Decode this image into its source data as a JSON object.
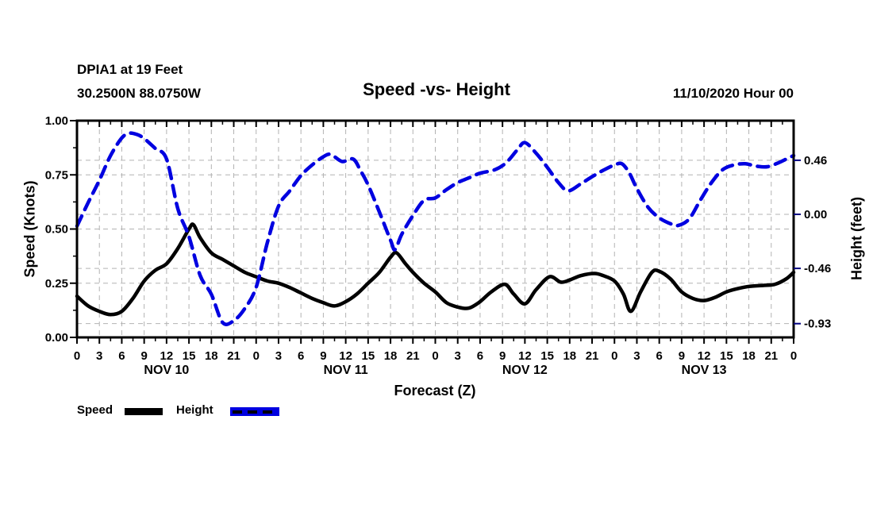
{
  "header": {
    "station_line1": "DPIA1 at 19 Feet",
    "station_line2": "30.2500N 88.0750W",
    "title": "Speed -vs- Height",
    "run_info": "11/10/2020 Hour 00"
  },
  "colors": {
    "speed_line": "#000000",
    "height_line": "#0000e0",
    "grid": "#b3b3b3",
    "right_axis_tick": "#000080",
    "frame": "#000000",
    "background": "#ffffff"
  },
  "legend": [
    {
      "label": "Speed",
      "swatch": "solid-black-line"
    },
    {
      "label": "Height",
      "swatch": "blue-dashed-line"
    }
  ],
  "chart_data": {
    "type": "line",
    "title": "Speed -vs- Height",
    "xlabel": "Forecast (Z)",
    "ylabel_left": "Speed (Knots)",
    "ylabel_right": "Height (feet)",
    "grid": true,
    "x_range_hours": [
      0,
      96
    ],
    "x_major_tick_step_hours": 3,
    "x_minor_tick_step_hours": 1.5,
    "hour_label_cycle": [
      "0",
      "3",
      "6",
      "9",
      "12",
      "15",
      "18",
      "21"
    ],
    "end_hour_label": "0",
    "day_labels": [
      "NOV 10",
      "NOV 11",
      "NOV 12",
      "NOV 13"
    ],
    "left_axis": {
      "range": [
        0.0,
        1.0
      ],
      "tick_values": [
        0.0,
        0.25,
        0.5,
        0.75,
        1.0
      ],
      "tick_labels": [
        "0.00",
        "0.25",
        "0.50",
        "0.75",
        "1.00"
      ],
      "minor_tick_step": 0.125
    },
    "right_axis": {
      "range": [
        -1.047,
        0.797
      ],
      "tick_values": [
        0.46,
        0.0,
        -0.46,
        -0.93
      ],
      "tick_labels": [
        "0.46",
        "0.00",
        "-0.46",
        "-0.93"
      ]
    },
    "series": [
      {
        "name": "Speed",
        "axis": "left",
        "style": "solid",
        "color": "#000000",
        "points": [
          [
            0,
            0.19
          ],
          [
            1.5,
            0.145
          ],
          [
            3,
            0.12
          ],
          [
            4.5,
            0.105
          ],
          [
            6,
            0.12
          ],
          [
            7.5,
            0.18
          ],
          [
            9,
            0.26
          ],
          [
            10.5,
            0.31
          ],
          [
            12,
            0.34
          ],
          [
            13.5,
            0.41
          ],
          [
            15,
            0.5
          ],
          [
            15.6,
            0.52
          ],
          [
            16.5,
            0.46
          ],
          [
            18,
            0.39
          ],
          [
            19.5,
            0.36
          ],
          [
            21,
            0.33
          ],
          [
            22.5,
            0.3
          ],
          [
            24,
            0.28
          ],
          [
            25.5,
            0.26
          ],
          [
            27,
            0.25
          ],
          [
            28.5,
            0.23
          ],
          [
            30,
            0.205
          ],
          [
            31.5,
            0.18
          ],
          [
            33,
            0.16
          ],
          [
            34.5,
            0.145
          ],
          [
            36,
            0.165
          ],
          [
            37.5,
            0.2
          ],
          [
            39,
            0.25
          ],
          [
            40.5,
            0.3
          ],
          [
            42,
            0.37
          ],
          [
            42.8,
            0.39
          ],
          [
            44,
            0.34
          ],
          [
            45,
            0.3
          ],
          [
            46.5,
            0.25
          ],
          [
            48,
            0.21
          ],
          [
            49.5,
            0.16
          ],
          [
            51,
            0.14
          ],
          [
            52.5,
            0.135
          ],
          [
            54,
            0.165
          ],
          [
            55.5,
            0.21
          ],
          [
            57.3,
            0.245
          ],
          [
            58.5,
            0.2
          ],
          [
            60,
            0.155
          ],
          [
            61.5,
            0.22
          ],
          [
            63.3,
            0.28
          ],
          [
            64.8,
            0.255
          ],
          [
            66,
            0.265
          ],
          [
            67.5,
            0.285
          ],
          [
            69.3,
            0.295
          ],
          [
            70.5,
            0.285
          ],
          [
            72,
            0.26
          ],
          [
            73.2,
            0.2
          ],
          [
            74.2,
            0.12
          ],
          [
            75.5,
            0.21
          ],
          [
            77,
            0.3
          ],
          [
            78,
            0.305
          ],
          [
            79.5,
            0.27
          ],
          [
            81,
            0.21
          ],
          [
            82.5,
            0.18
          ],
          [
            84,
            0.17
          ],
          [
            85.5,
            0.185
          ],
          [
            87,
            0.21
          ],
          [
            88.5,
            0.225
          ],
          [
            90,
            0.235
          ],
          [
            92,
            0.24
          ],
          [
            93.5,
            0.245
          ],
          [
            95,
            0.27
          ],
          [
            96,
            0.3
          ]
        ]
      },
      {
        "name": "Height",
        "axis": "right",
        "style": "dashed",
        "color": "#0000e0",
        "points": [
          [
            0,
            -0.1
          ],
          [
            1.5,
            0.1
          ],
          [
            3,
            0.29
          ],
          [
            4.5,
            0.5
          ],
          [
            6,
            0.65
          ],
          [
            7,
            0.69
          ],
          [
            8,
            0.68
          ],
          [
            9,
            0.645
          ],
          [
            10.5,
            0.56
          ],
          [
            12,
            0.47
          ],
          [
            13.5,
            0.05
          ],
          [
            15,
            -0.19
          ],
          [
            16.5,
            -0.52
          ],
          [
            18,
            -0.68
          ],
          [
            19.5,
            -0.92
          ],
          [
            21,
            -0.905
          ],
          [
            22.5,
            -0.8
          ],
          [
            24,
            -0.62
          ],
          [
            25.5,
            -0.24
          ],
          [
            27,
            0.07
          ],
          [
            28.5,
            0.2
          ],
          [
            30,
            0.33
          ],
          [
            31.5,
            0.42
          ],
          [
            33,
            0.49
          ],
          [
            34,
            0.51
          ],
          [
            35.5,
            0.45
          ],
          [
            37,
            0.47
          ],
          [
            38,
            0.37
          ],
          [
            39,
            0.25
          ],
          [
            40.5,
            0.02
          ],
          [
            42,
            -0.22
          ],
          [
            42.6,
            -0.3
          ],
          [
            43.5,
            -0.17
          ],
          [
            45,
            -0.01
          ],
          [
            46.5,
            0.12
          ],
          [
            48,
            0.14
          ],
          [
            49.5,
            0.21
          ],
          [
            51,
            0.27
          ],
          [
            52.5,
            0.31
          ],
          [
            54,
            0.35
          ],
          [
            56,
            0.38
          ],
          [
            57.5,
            0.44
          ],
          [
            59,
            0.55
          ],
          [
            60,
            0.61
          ],
          [
            61.5,
            0.52
          ],
          [
            63,
            0.4
          ],
          [
            64.5,
            0.27
          ],
          [
            65.8,
            0.2
          ],
          [
            67.5,
            0.26
          ],
          [
            69,
            0.32
          ],
          [
            70.5,
            0.375
          ],
          [
            72,
            0.42
          ],
          [
            73,
            0.43
          ],
          [
            74,
            0.35
          ],
          [
            75,
            0.22
          ],
          [
            76.5,
            0.06
          ],
          [
            78,
            -0.03
          ],
          [
            79.5,
            -0.08
          ],
          [
            80.5,
            -0.095
          ],
          [
            82,
            -0.04
          ],
          [
            83.5,
            0.12
          ],
          [
            85,
            0.27
          ],
          [
            86.5,
            0.38
          ],
          [
            88,
            0.42
          ],
          [
            89.5,
            0.43
          ],
          [
            91,
            0.41
          ],
          [
            92.5,
            0.405
          ],
          [
            94,
            0.44
          ],
          [
            95,
            0.47
          ],
          [
            96,
            0.5
          ]
        ]
      }
    ]
  }
}
